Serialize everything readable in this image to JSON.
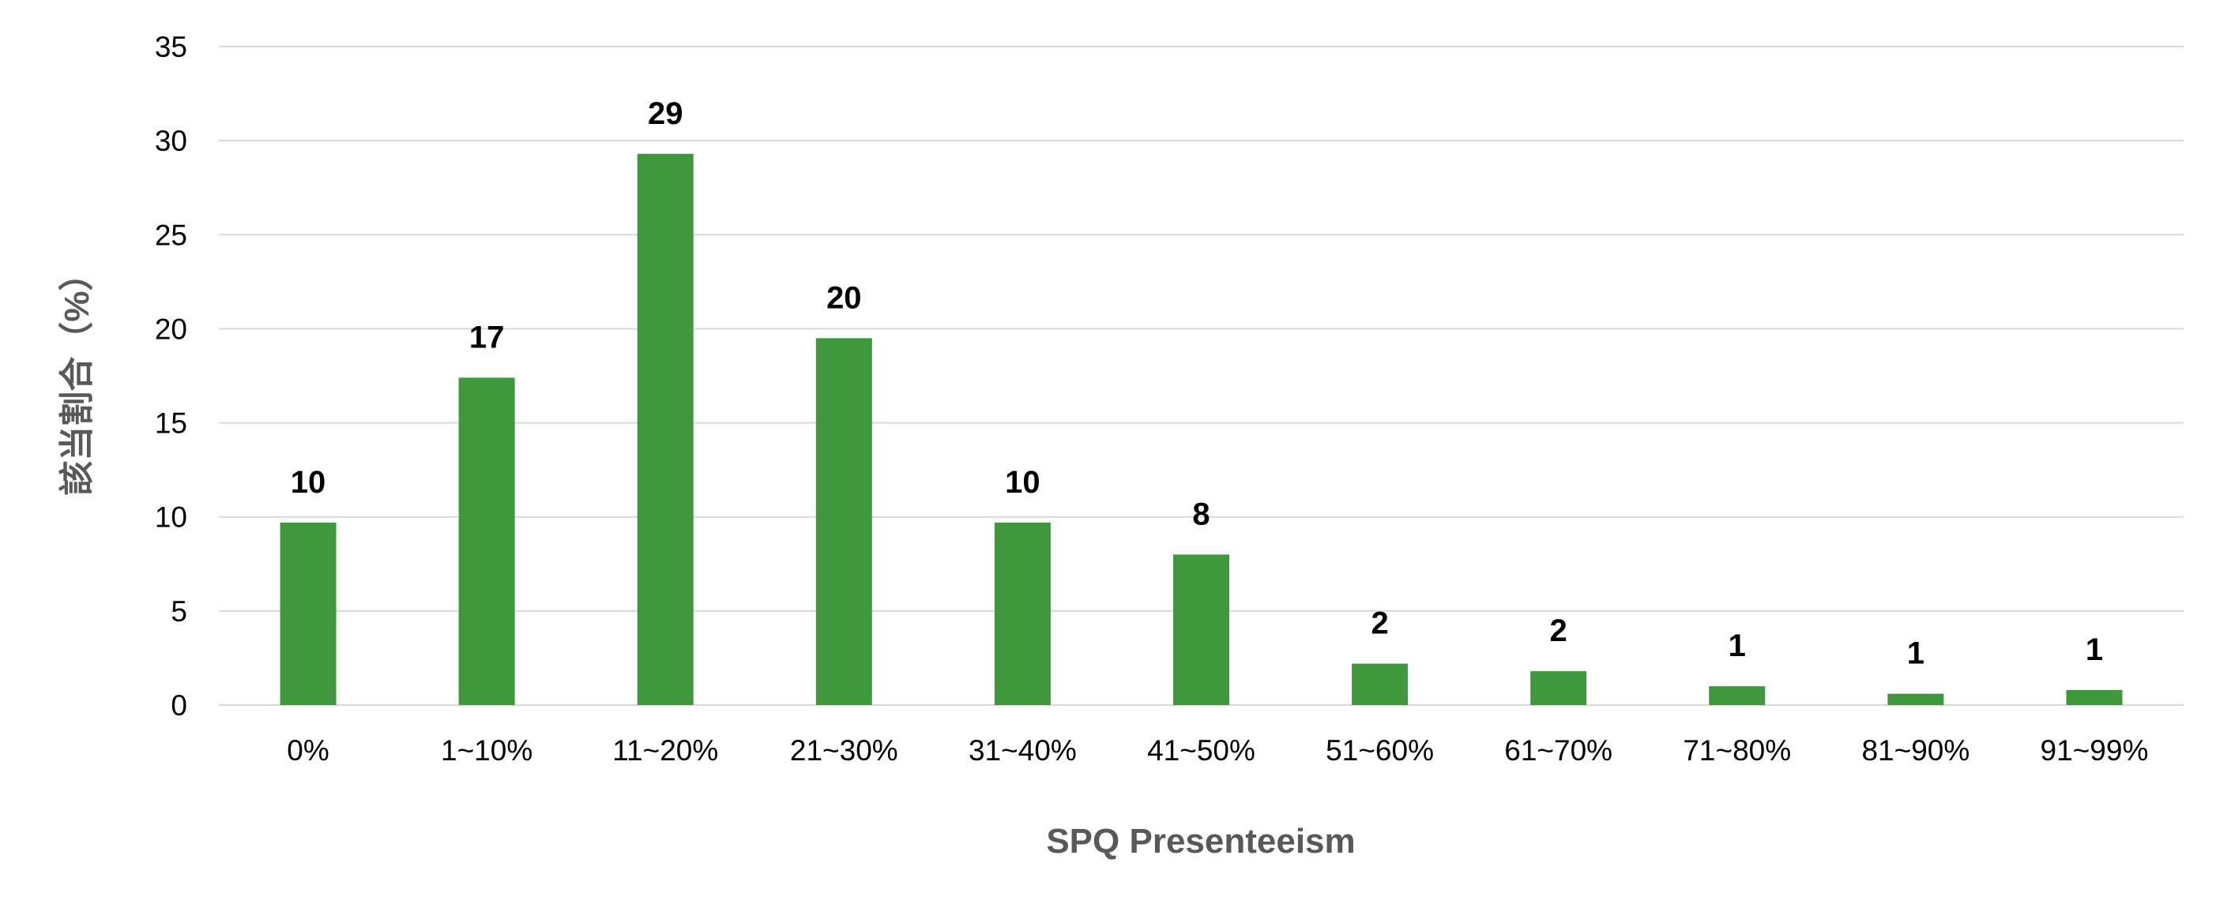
{
  "chart_data": {
    "type": "bar",
    "title": "",
    "xlabel": "SPQ Presenteeism",
    "ylabel": "該当割合（%）",
    "ylim": [
      0,
      35
    ],
    "yticks": [
      0,
      5,
      10,
      15,
      20,
      25,
      30,
      35
    ],
    "grid": true,
    "bar_color": "#3f983b",
    "grid_color": "#d9d9d9",
    "categories": [
      "0%",
      "1~10%",
      "11~20%",
      "21~30%",
      "31~40%",
      "41~50%",
      "51~60%",
      "61~70%",
      "71~80%",
      "81~90%",
      "91~99%"
    ],
    "values": [
      9.7,
      17.4,
      29.3,
      19.5,
      9.7,
      8.0,
      2.2,
      1.8,
      1.0,
      0.6,
      0.8
    ],
    "data_labels": [
      "10",
      "17",
      "29",
      "20",
      "10",
      "8",
      "2",
      "2",
      "1",
      "1",
      "1"
    ]
  }
}
